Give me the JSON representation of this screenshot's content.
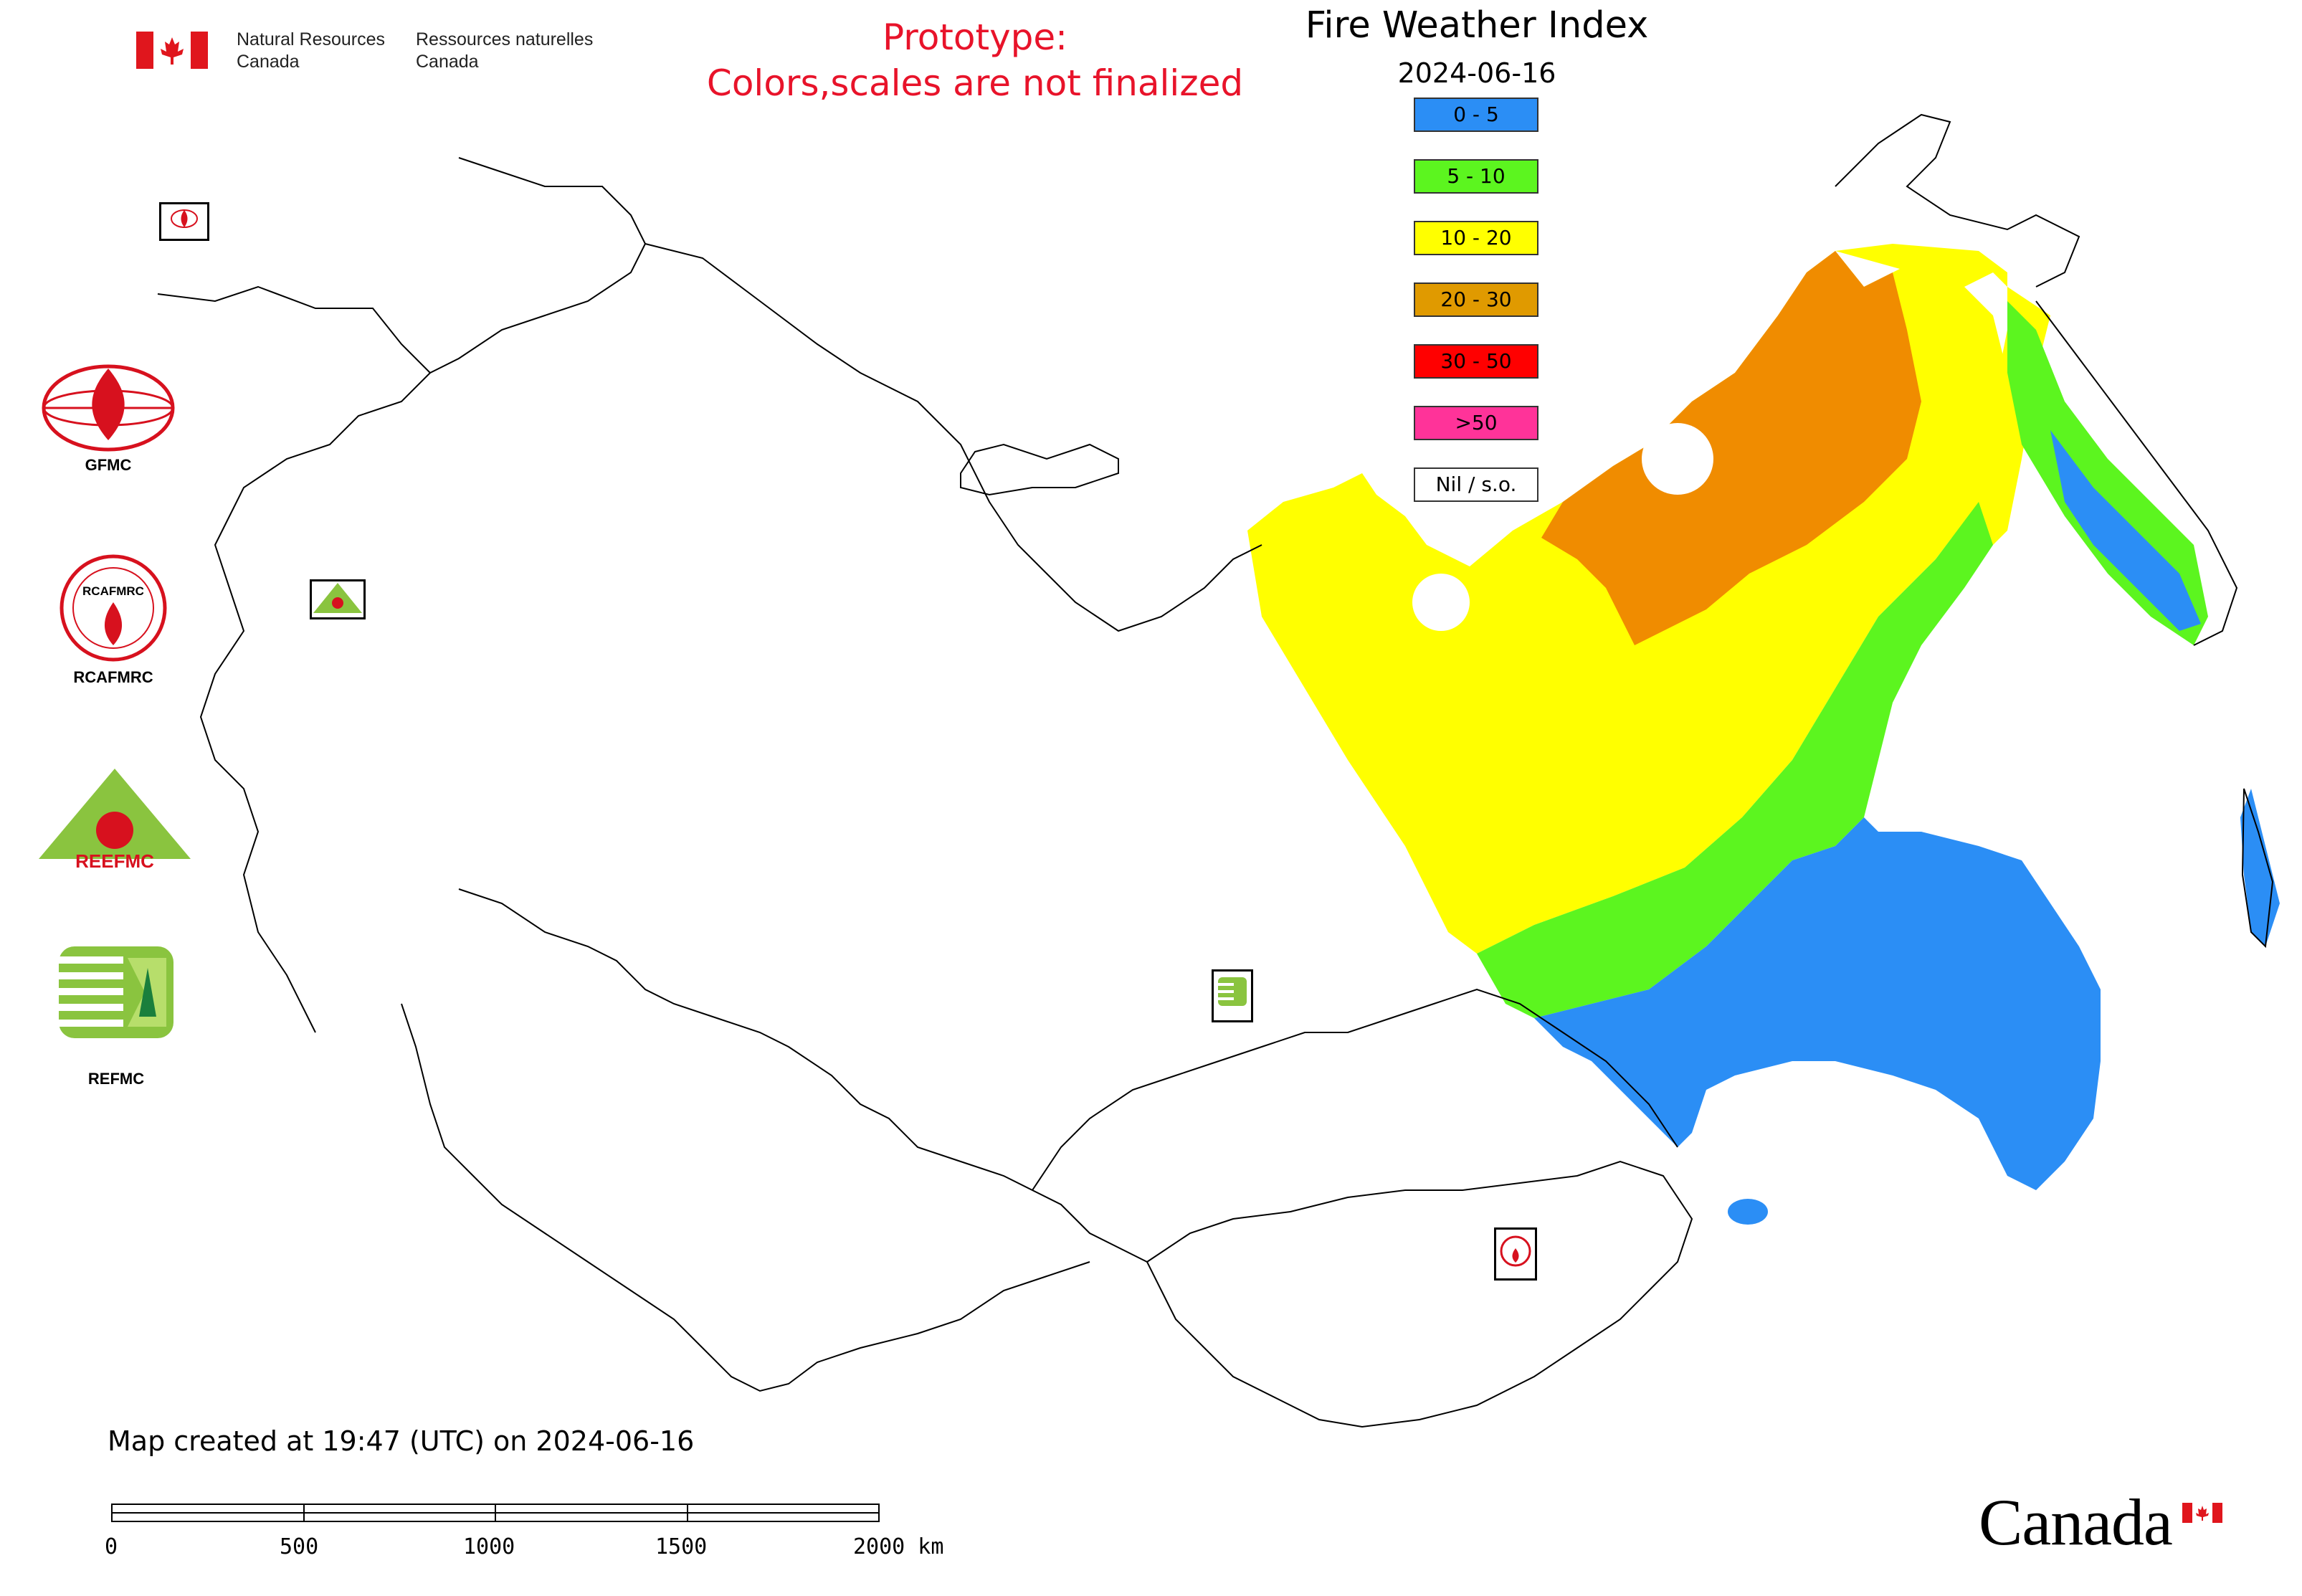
{
  "header": {
    "nrcan_en_line1": "Natural Resources",
    "nrcan_en_line2": "Canada",
    "nrcan_fr_line1": "Ressources naturelles",
    "nrcan_fr_line2": "Canada",
    "prototype_line1": "Prototype:",
    "prototype_line2": "Colors,scales are not finalized"
  },
  "legend": {
    "title": "Fire Weather Index",
    "date": "2024-06-16",
    "classes": [
      {
        "label": "0 - 5",
        "color": "#2b8ef5"
      },
      {
        "label": "5 - 10",
        "color": "#5cf51f"
      },
      {
        "label": "10 - 20",
        "color": "#ffff00"
      },
      {
        "label": "20 - 30",
        "color": "#e09a00"
      },
      {
        "label": "30 - 50",
        "color": "#ff0000"
      },
      {
        "label": ">50",
        "color": "#ff3399"
      },
      {
        "label": "Nil / s.o.",
        "color": "#ffffff"
      }
    ]
  },
  "logos": {
    "gfmc": "GFMC",
    "rcafmrc": "RCAFMRC",
    "reefmc": "REEFMC",
    "refmc": "REFMC",
    "reefmc_mark_text": "REEFMC",
    "rcafmrc_mark_text": "RCAFMRC"
  },
  "footer": {
    "map_created": "Map created at 19:47 (UTC) on 2024-06-16",
    "scale_labels": [
      "0",
      "500",
      "1000",
      "1500",
      "2000 km"
    ],
    "wordmark": "Canada"
  }
}
